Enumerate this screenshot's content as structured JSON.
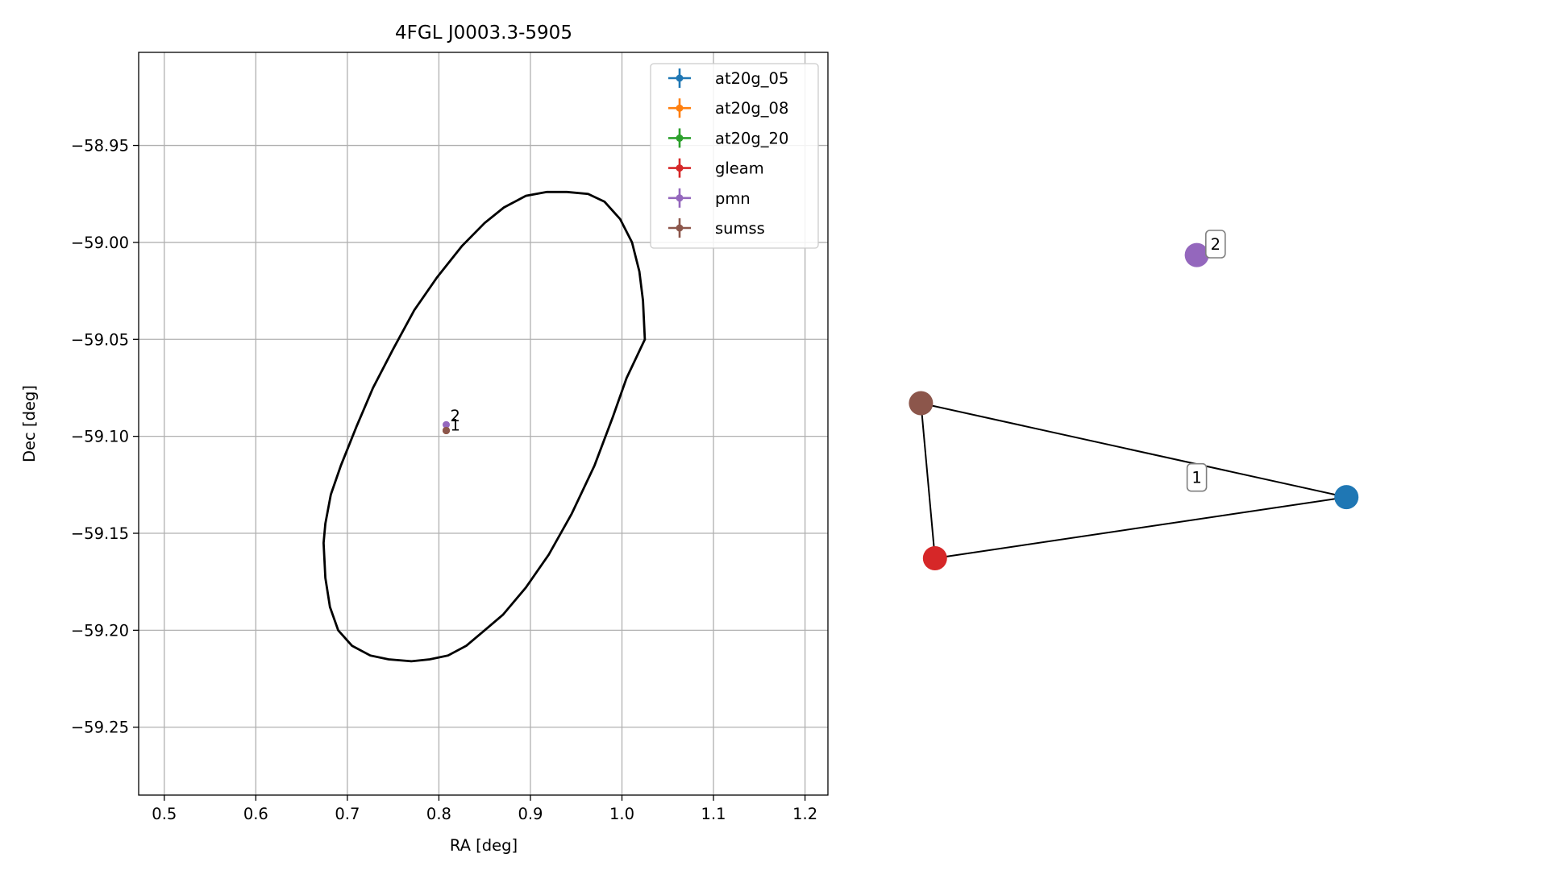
{
  "chart_data": [
    {
      "type": "scatter",
      "title": "4FGL J0003.3-5905",
      "xlabel": "RA [deg]",
      "ylabel": "Dec [deg]",
      "xlim": [
        0.472,
        1.225
      ],
      "ylim": [
        -59.285,
        -58.902
      ],
      "xticks": [
        0.5,
        0.6,
        0.7,
        0.8,
        0.9,
        1.0,
        1.1,
        1.2
      ],
      "xtick_labels": [
        "0.5",
        "0.6",
        "0.7",
        "0.8",
        "0.9",
        "1.0",
        "1.1",
        "1.2"
      ],
      "yticks": [
        -58.95,
        -59.0,
        -59.05,
        -59.1,
        -59.15,
        -59.2,
        -59.25
      ],
      "ytick_labels": [
        "−58.95",
        "−59.00",
        "−59.05",
        "−59.10",
        "−59.15",
        "−59.20",
        "−59.25"
      ],
      "grid": true,
      "legend_position": "top-right",
      "series": [
        {
          "name": "at20g_05",
          "color": "#1f77b4",
          "points": [
            {
              "x": 0.808,
              "y": -59.097
            }
          ]
        },
        {
          "name": "at20g_08",
          "color": "#ff7f0e",
          "points": [
            {
              "x": 0.808,
              "y": -59.097
            }
          ]
        },
        {
          "name": "at20g_20",
          "color": "#2ca02c",
          "points": [
            {
              "x": 0.808,
              "y": -59.097
            }
          ]
        },
        {
          "name": "gleam",
          "color": "#d62728",
          "points": [
            {
              "x": 0.808,
              "y": -59.097
            }
          ]
        },
        {
          "name": "pmn",
          "color": "#9467bd",
          "points": [
            {
              "x": 0.808,
              "y": -59.094
            }
          ]
        },
        {
          "name": "sumss",
          "color": "#8c564b",
          "points": [
            {
              "x": 0.808,
              "y": -59.097
            }
          ]
        }
      ],
      "annotations": [
        {
          "text": "2",
          "x": 0.808,
          "y": -59.094
        },
        {
          "text": "1",
          "x": 0.808,
          "y": -59.097
        }
      ],
      "ellipse": {
        "center": [
          0.85,
          -59.095
        ],
        "points": [
          [
            1.025,
            -59.05
          ],
          [
            1.023,
            -59.03
          ],
          [
            1.019,
            -59.015
          ],
          [
            1.011,
            -59.0
          ],
          [
            0.998,
            -58.988
          ],
          [
            0.981,
            -58.979
          ],
          [
            0.963,
            -58.975
          ],
          [
            0.94,
            -58.974
          ],
          [
            0.918,
            -58.974
          ],
          [
            0.895,
            -58.976
          ],
          [
            0.871,
            -58.982
          ],
          [
            0.85,
            -58.99
          ],
          [
            0.825,
            -59.002
          ],
          [
            0.798,
            -59.018
          ],
          [
            0.773,
            -59.035
          ],
          [
            0.75,
            -59.055
          ],
          [
            0.728,
            -59.075
          ],
          [
            0.71,
            -59.095
          ],
          [
            0.693,
            -59.115
          ],
          [
            0.682,
            -59.13
          ],
          [
            0.676,
            -59.145
          ],
          [
            0.674,
            -59.155
          ],
          [
            0.676,
            -59.173
          ],
          [
            0.681,
            -59.188
          ],
          [
            0.69,
            -59.2
          ],
          [
            0.705,
            -59.208
          ],
          [
            0.725,
            -59.213
          ],
          [
            0.745,
            -59.215
          ],
          [
            0.77,
            -59.216
          ],
          [
            0.79,
            -59.215
          ],
          [
            0.81,
            -59.213
          ],
          [
            0.83,
            -59.208
          ],
          [
            0.85,
            -59.2
          ],
          [
            0.87,
            -59.192
          ],
          [
            0.895,
            -59.178
          ],
          [
            0.92,
            -59.161
          ],
          [
            0.945,
            -59.14
          ],
          [
            0.97,
            -59.115
          ],
          [
            0.99,
            -59.09
          ],
          [
            1.005,
            -59.07
          ],
          [
            1.025,
            -59.05
          ]
        ]
      }
    },
    {
      "type": "graph",
      "nodes": [
        {
          "name": "at20g_05",
          "color": "#1f77b4",
          "x": 0.94,
          "y": 0.574
        },
        {
          "name": "sumss",
          "color": "#8c564b",
          "x": 0.03,
          "y": 0.231
        },
        {
          "name": "gleam",
          "color": "#d62728",
          "x": 0.06,
          "y": 0.797
        },
        {
          "name": "pmn",
          "color": "#9467bd",
          "x": 0.62,
          "y": -0.31
        }
      ],
      "edges": [
        {
          "from": "sumss",
          "to": "at20g_05"
        },
        {
          "from": "sumss",
          "to": "gleam"
        },
        {
          "from": "gleam",
          "to": "at20g_05"
        }
      ],
      "labels": [
        {
          "text": "1",
          "x": 0.62,
          "y": 0.502
        },
        {
          "text": "2",
          "x": 0.66,
          "y": -0.35
        }
      ]
    }
  ]
}
